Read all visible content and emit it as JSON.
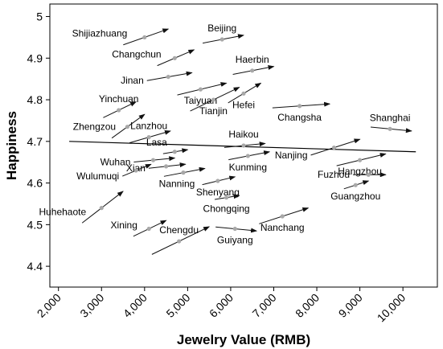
{
  "chart_data": {
    "type": "scatter",
    "title": "",
    "xlabel": "Jewelry Value (RMB)",
    "ylabel": "Happiness",
    "xlim": [
      1800,
      10800
    ],
    "ylim": [
      4.35,
      5.03
    ],
    "x_ticks": [
      2000,
      3000,
      4000,
      5000,
      6000,
      7000,
      8000,
      9000,
      10000
    ],
    "x_tick_labels": [
      "2,000",
      "3,000",
      "4,000",
      "5,000",
      "6,000",
      "7,000",
      "8,000",
      "9,000",
      "10,000"
    ],
    "y_ticks": [
      4.4,
      4.5,
      4.6,
      4.7,
      4.8,
      4.9,
      5.0
    ],
    "y_tick_labels": [
      "4.4",
      "4.5",
      "4.6",
      "4.7",
      "4.8",
      "4.9",
      "5"
    ],
    "grid": false,
    "trend_line": {
      "x": [
        2250,
        10300
      ],
      "y": [
        4.7,
        4.675
      ]
    },
    "points": [
      {
        "city": "Shijiazhuang",
        "x": 4000,
        "y": 4.95,
        "arrow_to": [
          4550,
          4.97
        ],
        "label_pos": "left-above"
      },
      {
        "city": "Beijing",
        "x": 5800,
        "y": 4.945,
        "arrow_to": [
          6300,
          4.955
        ],
        "label_pos": "above"
      },
      {
        "city": "Changchun",
        "x": 4700,
        "y": 4.9,
        "arrow_to": [
          5150,
          4.92
        ],
        "label_pos": "left-above"
      },
      {
        "city": "Haerbin",
        "x": 6500,
        "y": 4.87,
        "arrow_to": [
          7000,
          4.88
        ],
        "label_pos": "above"
      },
      {
        "city": "Jinan",
        "x": 4550,
        "y": 4.855,
        "arrow_to": [
          5100,
          4.865
        ],
        "label_pos": "left"
      },
      {
        "city": "Taiyuan",
        "x": 5300,
        "y": 4.825,
        "arrow_to": [
          5900,
          4.84
        ],
        "label_pos": "below"
      },
      {
        "city": "Tianjin",
        "x": 5600,
        "y": 4.8,
        "arrow_to": [
          6200,
          4.83
        ],
        "label_pos": "below"
      },
      {
        "city": "Hefei",
        "x": 6300,
        "y": 4.815,
        "arrow_to": [
          6700,
          4.84
        ],
        "label_pos": "below"
      },
      {
        "city": "Yinchuan",
        "x": 3400,
        "y": 4.775,
        "arrow_to": [
          3800,
          4.795
        ],
        "label_pos": "above"
      },
      {
        "city": "Changsha",
        "x": 7600,
        "y": 4.785,
        "arrow_to": [
          8300,
          4.79
        ],
        "label_pos": "below"
      },
      {
        "city": "Zhengzou",
        "x": 3600,
        "y": 4.735,
        "arrow_to": [
          4000,
          4.765
        ],
        "label_pos": "left-above"
      },
      {
        "city": "Lanzhou",
        "x": 4100,
        "y": 4.71,
        "arrow_to": [
          4600,
          4.725
        ],
        "label_pos": "above"
      },
      {
        "city": "Shanghai",
        "x": 9700,
        "y": 4.73,
        "arrow_to": [
          10200,
          4.725
        ],
        "label_pos": "above"
      },
      {
        "city": "Haikou",
        "x": 6300,
        "y": 4.69,
        "arrow_to": [
          6800,
          4.695
        ],
        "label_pos": "above"
      },
      {
        "city": "Nanjing",
        "x": 8400,
        "y": 4.685,
        "arrow_to": [
          9000,
          4.705
        ],
        "label_pos": "left"
      },
      {
        "city": "Lasa",
        "x": 4700,
        "y": 4.675,
        "arrow_to": [
          5000,
          4.68
        ],
        "label_pos": "left-above"
      },
      {
        "city": "Kunming",
        "x": 6400,
        "y": 4.665,
        "arrow_to": [
          6900,
          4.675
        ],
        "label_pos": "below"
      },
      {
        "city": "Wuhan",
        "x": 4200,
        "y": 4.655,
        "arrow_to": [
          4700,
          4.66
        ],
        "label_pos": "left"
      },
      {
        "city": "Hangzhou",
        "x": 9000,
        "y": 4.655,
        "arrow_to": [
          9600,
          4.67
        ],
        "label_pos": "below"
      },
      {
        "city": "Xian",
        "x": 4500,
        "y": 4.64,
        "arrow_to": [
          4950,
          4.645
        ],
        "label_pos": "left"
      },
      {
        "city": "Wulumuqi",
        "x": 3800,
        "y": 4.63,
        "arrow_to": [
          4150,
          4.645
        ],
        "label_pos": "left"
      },
      {
        "city": "Fuzhou",
        "x": 9200,
        "y": 4.62,
        "arrow_to": [
          9600,
          4.62
        ],
        "label_pos": "left"
      },
      {
        "city": "Nanning",
        "x": 4900,
        "y": 4.625,
        "arrow_to": [
          5400,
          4.635
        ],
        "label_pos": "below-left"
      },
      {
        "city": "Shenyang",
        "x": 5700,
        "y": 4.605,
        "arrow_to": [
          6100,
          4.615
        ],
        "label_pos": "below"
      },
      {
        "city": "Guangzhou",
        "x": 8900,
        "y": 4.595,
        "arrow_to": [
          9200,
          4.605
        ],
        "label_pos": "below"
      },
      {
        "city": "Huhehaote",
        "x": 3000,
        "y": 4.54,
        "arrow_to": [
          3500,
          4.58
        ],
        "label_pos": "left-above"
      },
      {
        "city": "Chongqing",
        "x": 5900,
        "y": 4.565,
        "arrow_to": [
          6200,
          4.57
        ],
        "label_pos": "below"
      },
      {
        "city": "Nanchang",
        "x": 7200,
        "y": 4.52,
        "arrow_to": [
          7800,
          4.54
        ],
        "label_pos": "below"
      },
      {
        "city": "Xining",
        "x": 4100,
        "y": 4.49,
        "arrow_to": [
          4500,
          4.51
        ],
        "label_pos": "left-above"
      },
      {
        "city": "Chengdu",
        "x": 4800,
        "y": 4.46,
        "arrow_to": [
          5500,
          4.495
        ],
        "label_pos": "above"
      },
      {
        "city": "Guiyang",
        "x": 6100,
        "y": 4.49,
        "arrow_to": [
          6600,
          4.485
        ],
        "label_pos": "below"
      }
    ]
  },
  "colors": {
    "arrow": "#111111",
    "point": "#a8a8a8",
    "axis": "#000000",
    "trend": "#000000"
  }
}
